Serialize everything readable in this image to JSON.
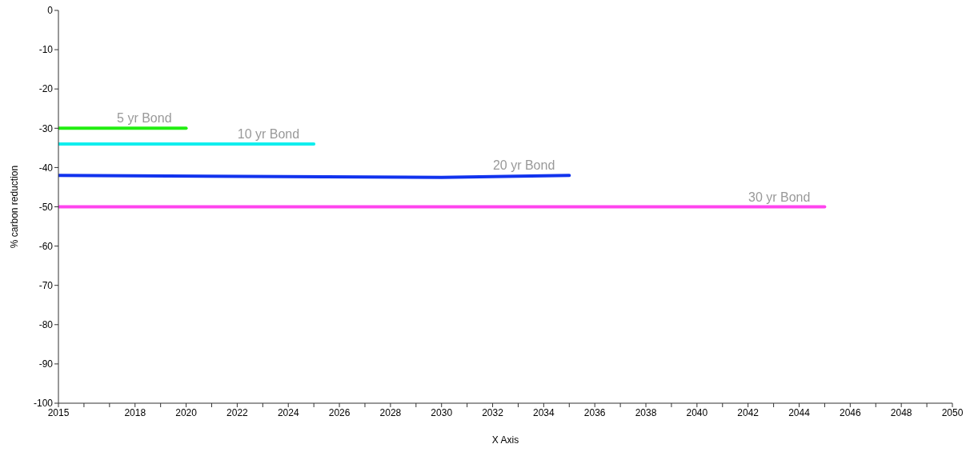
{
  "chart_data": {
    "type": "line",
    "xlabel": "X Axis",
    "ylabel": "% carbon reduction",
    "xlim": [
      2015,
      2050
    ],
    "xticks": [
      2015,
      {
        "value": 2016,
        "label": null
      },
      {
        "value": 2017,
        "label": null
      },
      2018,
      {
        "value": 2019,
        "label": null
      },
      2020,
      {
        "value": 2021,
        "label": null
      },
      2022,
      {
        "value": 2023,
        "label": null
      },
      2024,
      {
        "value": 2025,
        "label": null
      },
      2026,
      {
        "value": 2027,
        "label": null
      },
      2028,
      {
        "value": 2029,
        "label": null
      },
      2030,
      {
        "value": 2031,
        "label": null
      },
      2032,
      {
        "value": 2033,
        "label": null
      },
      2034,
      {
        "value": 2035,
        "label": null
      },
      2036,
      {
        "value": 2037,
        "label": null
      },
      2038,
      {
        "value": 2039,
        "label": null
      },
      2040,
      {
        "value": 2041,
        "label": null
      },
      2042,
      {
        "value": 2043,
        "label": null
      },
      2044,
      {
        "value": 2045,
        "label": null
      },
      2046,
      {
        "value": 2047,
        "label": null
      },
      2048,
      {
        "value": 2049,
        "label": null
      },
      2050
    ],
    "ylim": [
      -100,
      0
    ],
    "yticks": [
      -100,
      -90,
      -80,
      -70,
      -60,
      -50,
      -40,
      -30,
      -20,
      -10,
      0
    ],
    "grid": false,
    "legend": false,
    "marker": "none",
    "line_style": "solid",
    "series": [
      {
        "name": "5 yr Bond",
        "color": "#22ee11",
        "x": [
          2015,
          2020
        ],
        "values": [
          -30,
          -30
        ]
      },
      {
        "name": "10 yr Bond",
        "color": "#11eeee",
        "x": [
          2015,
          2025
        ],
        "values": [
          -34,
          -34
        ]
      },
      {
        "name": "20 yr Bond",
        "color": "#1133ee",
        "x": [
          2015,
          2030,
          2035
        ],
        "values": [
          -42,
          -42.5,
          -42
        ]
      },
      {
        "name": "30 yr Bond",
        "color": "#ff44ee",
        "x": [
          2015,
          2045
        ],
        "values": [
          -50,
          -50
        ]
      }
    ]
  }
}
